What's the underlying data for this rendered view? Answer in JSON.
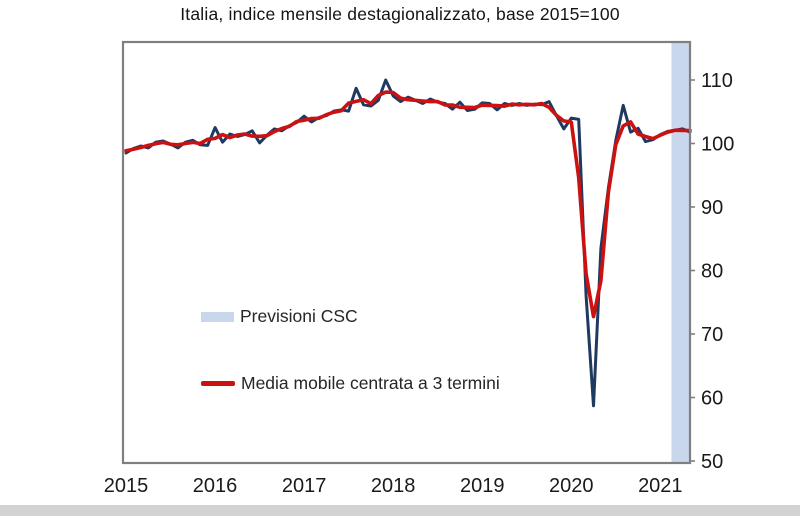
{
  "title": "Italia, indice mensile destagionalizzato, base 2015=100",
  "legend": {
    "items": [
      {
        "label": "Previsioni CSC",
        "swatch": "band"
      },
      {
        "label": "Media mobile centrata a 3 termini",
        "swatch": "line"
      }
    ]
  },
  "colors": {
    "monthly_line": "#1f3a60",
    "moving_average_line": "#cc1111",
    "forecast_band": "#c9d7ed",
    "frame": "#7f7f7f",
    "axis_text": "#1a1a1a",
    "bottom_strip": "#d2d2d2"
  },
  "chart_data": {
    "type": "line",
    "title": "Italia, indice mensile destagionalizzato, base 2015=100",
    "x_start": "2015-01",
    "x_end": "2021-05",
    "x_tick_labels": [
      "2015",
      "2016",
      "2017",
      "2018",
      "2019",
      "2020",
      "2021"
    ],
    "y_ticks": [
      50,
      60,
      70,
      80,
      90,
      100,
      110
    ],
    "ylim": [
      49.7,
      116
    ],
    "grid": false,
    "legend_position": "inside-left-middle",
    "series": [
      {
        "name": "Indice mensile destagionalizzato",
        "color": "#1f3a60",
        "values": [
          98.5,
          99.2,
          99.6,
          99.3,
          100.2,
          100.4,
          99.9,
          99.3,
          100.2,
          100.5,
          99.8,
          99.7,
          102.5,
          100.2,
          101.5,
          101.1,
          101.4,
          102.0,
          100.1,
          101.3,
          102.3,
          102.0,
          102.8,
          103.3,
          104.3,
          103.4,
          104.1,
          104.4,
          105.1,
          105.3,
          105.1,
          108.7,
          106.1,
          105.9,
          106.8,
          110.0,
          107.5,
          106.6,
          107.3,
          106.8,
          106.3,
          107.0,
          106.5,
          106.3,
          105.4,
          106.5,
          105.2,
          105.4,
          106.4,
          106.3,
          105.3,
          106.3,
          106.0,
          106.3,
          106.0,
          106.2,
          106.1,
          106.6,
          104.4,
          102.3,
          104.0,
          103.8,
          76.0,
          58.7,
          83.5,
          93.0,
          100.5,
          106.0,
          101.8,
          102.4,
          100.3,
          100.6,
          101.4,
          101.9,
          102.1,
          102.3,
          101.8
        ]
      },
      {
        "name": "Media mobile centrata a 3 termini",
        "color": "#cc1111",
        "derived": "3-term centered moving average of the monthly index series"
      }
    ],
    "forecast_band": {
      "label": "Previsioni CSC",
      "color": "#c9d7ed",
      "from": "2021-03",
      "to": "2021-05",
      "start_month_index": 74
    }
  }
}
